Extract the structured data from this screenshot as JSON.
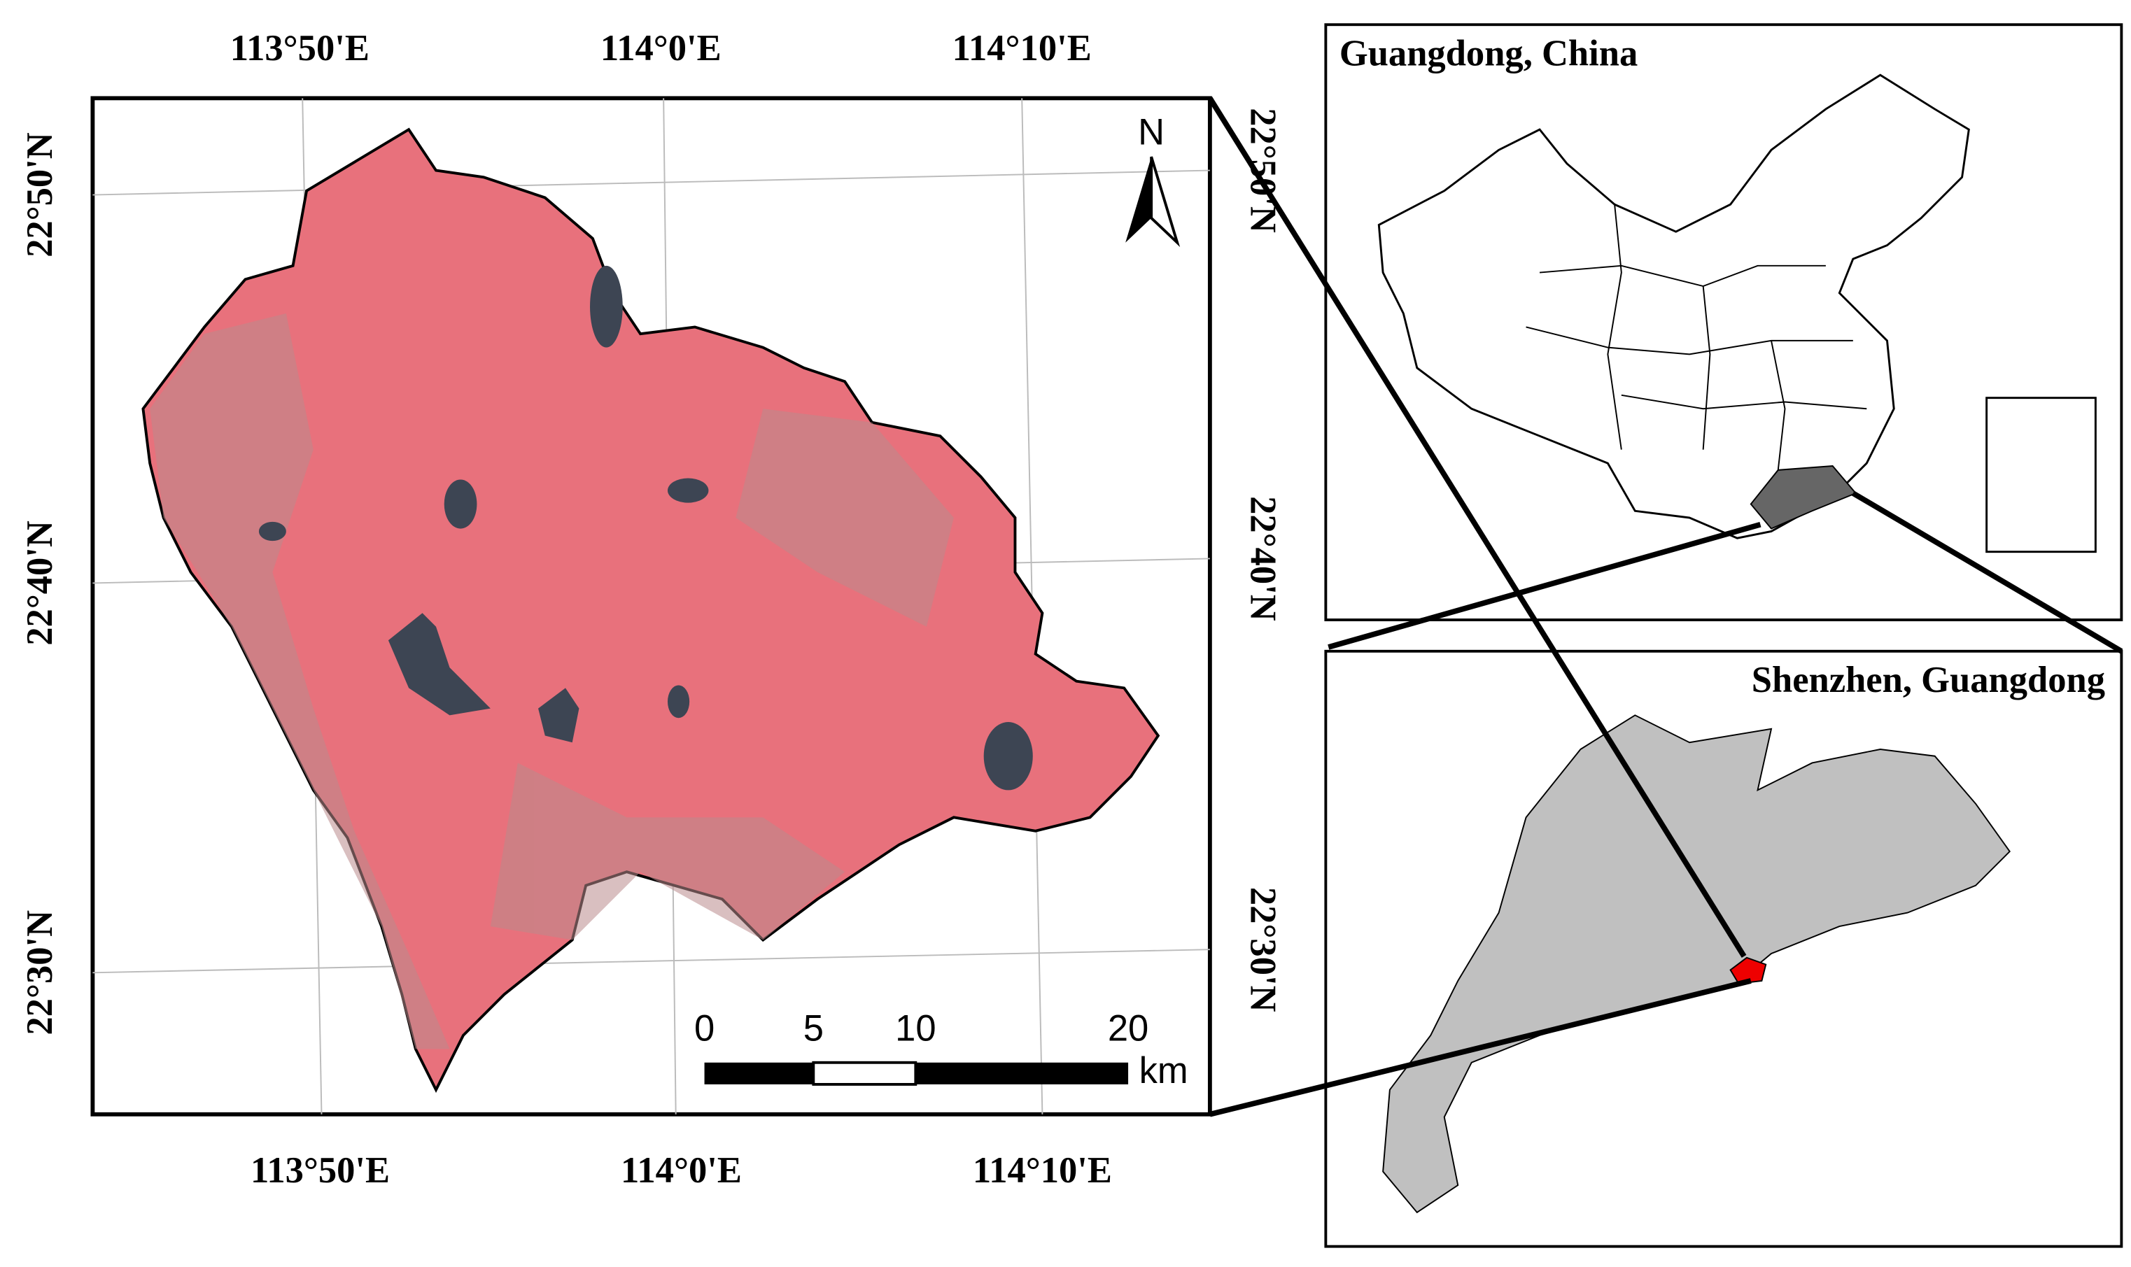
{
  "map": {
    "lon_labels_top": [
      "113°50'E",
      "114°0'E",
      "114°10'E"
    ],
    "lon_labels_bottom": [
      "113°50'E",
      "114°0'E",
      "114°10'E"
    ],
    "lat_labels_left": [
      "22°50'N",
      "22°40'N",
      "22°30'N"
    ],
    "lat_labels_right": [
      "22°50'N",
      "22°40'N",
      "22°30'N"
    ],
    "north": "N",
    "scale_bar": {
      "labels": [
        "0",
        "5",
        "10",
        "20"
      ],
      "unit": "km"
    }
  },
  "insets": [
    {
      "title": "Guangdong, China"
    },
    {
      "title": "Shenzhen, Guangdong"
    }
  ]
}
